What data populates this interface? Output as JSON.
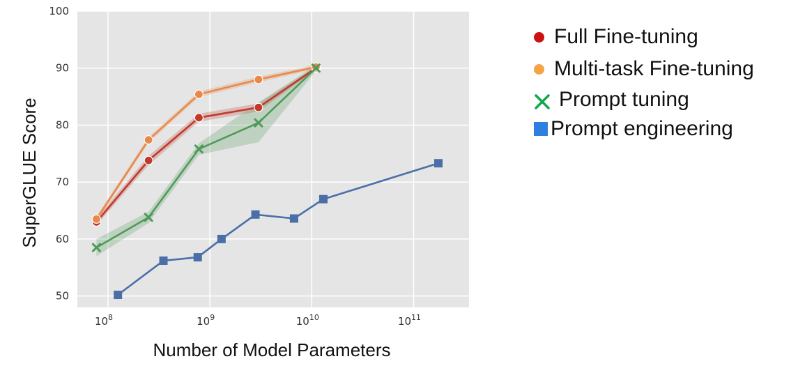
{
  "chart_data": {
    "type": "line",
    "xlabel": "Number of Model Parameters",
    "ylabel": "SuperGLUE Score",
    "x_scale": "log",
    "xlim": [
      50000000,
      350000000000
    ],
    "ylim": [
      48,
      100
    ],
    "x_ticks": [
      {
        "value": 100000000,
        "base": "10",
        "exp": "8"
      },
      {
        "value": 1000000000,
        "base": "10",
        "exp": "9"
      },
      {
        "value": 10000000000,
        "base": "10",
        "exp": "10"
      },
      {
        "value": 100000000000,
        "base": "10",
        "exp": "11"
      }
    ],
    "y_ticks": [
      50,
      60,
      70,
      80,
      90,
      100
    ],
    "grid": true,
    "background": "#e5e5e5",
    "legend_position": "right",
    "series": [
      {
        "name": "Full Fine-tuning",
        "color": "#c0392b",
        "legend_color": "#cc1111",
        "marker": "circle",
        "x": [
          77000000,
          250000000,
          780000000,
          3000000000,
          11000000000
        ],
        "y": [
          63.0,
          73.8,
          81.3,
          83.1,
          90.0
        ],
        "band": [
          [
            62.4,
            63.6
          ],
          [
            73.0,
            74.6
          ],
          [
            80.6,
            82.0
          ],
          [
            82.4,
            83.8
          ],
          [
            89.7,
            90.3
          ]
        ]
      },
      {
        "name": "Multi-task Fine-tuning",
        "color": "#e8894a",
        "legend_color": "#f5a343",
        "marker": "circle",
        "x": [
          77000000,
          250000000,
          780000000,
          3000000000,
          11000000000
        ],
        "y": [
          63.5,
          77.4,
          85.4,
          88.0,
          90.2
        ],
        "band": [
          [
            63.0,
            64.0
          ],
          [
            76.9,
            77.9
          ],
          [
            84.9,
            85.9
          ],
          [
            87.5,
            88.5
          ],
          [
            89.8,
            90.6
          ]
        ]
      },
      {
        "name": "Prompt tuning",
        "color": "#4f9a5a",
        "legend_color": "#11a84a",
        "marker": "x",
        "x": [
          77000000,
          250000000,
          780000000,
          3000000000,
          11000000000
        ],
        "y": [
          58.5,
          63.8,
          75.8,
          80.4,
          90.0
        ],
        "band": [
          [
            57.0,
            60.0
          ],
          [
            62.8,
            64.8
          ],
          [
            74.8,
            76.8
          ],
          [
            77.0,
            84.0
          ],
          [
            89.5,
            90.5
          ]
        ]
      },
      {
        "name": "Prompt engineering",
        "color": "#4a6fa8",
        "legend_color": "#2f7fe0",
        "marker": "square",
        "x": [
          125000000,
          350000000,
          760000000,
          1300000000,
          2800000000,
          6700000000,
          13000000000,
          175000000000
        ],
        "y": [
          50.2,
          56.2,
          56.8,
          60.0,
          64.3,
          63.6,
          67.0,
          73.3
        ]
      }
    ]
  }
}
